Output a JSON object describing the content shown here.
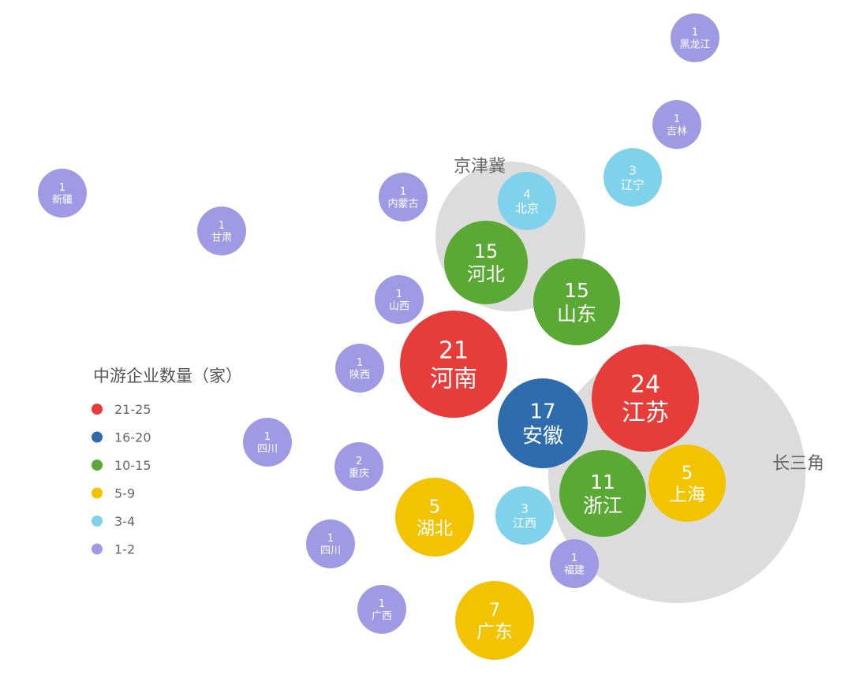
{
  "chart_data": {
    "type": "bubble",
    "title": "",
    "legend": {
      "title": "中游企业数量（家）",
      "placement": "left",
      "items": [
        {
          "label": "21-25",
          "color": "#e63c3a"
        },
        {
          "label": "16-20",
          "color": "#2e6cae"
        },
        {
          "label": "10-15",
          "color": "#5aa935"
        },
        {
          "label": "5-9",
          "color": "#f4c300"
        },
        {
          "label": "3-4",
          "color": "#7fd2ec"
        },
        {
          "label": "1-2",
          "color": "#a09ae4"
        }
      ]
    },
    "groups": [
      {
        "label": "京津冀",
        "color": "#dcdcdc"
      },
      {
        "label": "长三角",
        "color": "#dcdcdc"
      }
    ],
    "bubbles": [
      {
        "name": "黑龙江",
        "value": 1
      },
      {
        "name": "吉林",
        "value": 1
      },
      {
        "name": "辽宁",
        "value": 3
      },
      {
        "name": "新疆",
        "value": 1
      },
      {
        "name": "甘肃",
        "value": 1
      },
      {
        "name": "内蒙古",
        "value": 1
      },
      {
        "name": "北京",
        "value": 4
      },
      {
        "name": "河北",
        "value": 15
      },
      {
        "name": "山东",
        "value": 15
      },
      {
        "name": "山西",
        "value": 1
      },
      {
        "name": "河南",
        "value": 21
      },
      {
        "name": "陕西",
        "value": 1
      },
      {
        "name": "江苏",
        "value": 24
      },
      {
        "name": "安徽",
        "value": 17
      },
      {
        "name": "四川",
        "value": 1
      },
      {
        "name": "重庆",
        "value": 2
      },
      {
        "name": "浙江",
        "value": 11
      },
      {
        "name": "上海",
        "value": 5
      },
      {
        "name": "湖北",
        "value": 5
      },
      {
        "name": "江西",
        "value": 3
      },
      {
        "name": "四川",
        "value": 1
      },
      {
        "name": "福建",
        "value": 1
      },
      {
        "name": "广西",
        "value": 1
      },
      {
        "name": "广东",
        "value": 7
      }
    ]
  }
}
